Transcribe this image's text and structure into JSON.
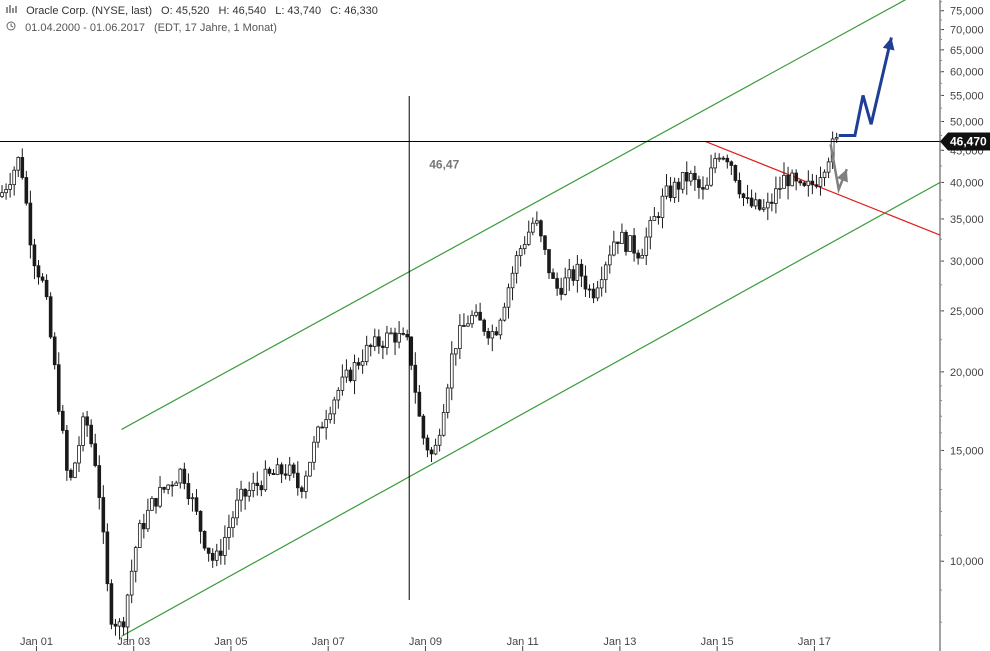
{
  "header": {
    "icon": "chart-type-icon",
    "instrument": "Oracle Corp. (NYSE, last)",
    "open": "O: 45,520",
    "high": "H: 46,540",
    "low": "L: 43,740",
    "close": "C: 46,330",
    "clock_icon": "clock-icon",
    "date_range": "01.04.2000 - 01.06.2017",
    "interval": "(EDT, 17 Jahre, 1 Monat)"
  },
  "chart_data": {
    "type": "candlestick",
    "scale": "log",
    "ylim": [
      7.2,
      78
    ],
    "xlim": [
      "2000-04",
      "2019-08"
    ],
    "x_ticks": [
      "Jan 01",
      "Jan 03",
      "Jan 05",
      "Jan 07",
      "Jan 09",
      "Jan 11",
      "Jan 13",
      "Jan 15",
      "Jan 17"
    ],
    "x_tick_dates": [
      "2001-01",
      "2003-01",
      "2005-01",
      "2007-01",
      "2009-01",
      "2011-01",
      "2013-01",
      "2015-01",
      "2017-01"
    ],
    "y_ticks": [
      {
        "value": 10000,
        "label": "10,000"
      },
      {
        "value": 15000,
        "label": "15,000"
      },
      {
        "value": 20000,
        "label": "20,000"
      },
      {
        "value": 25000,
        "label": "25,000"
      },
      {
        "value": 30000,
        "label": "30,000"
      },
      {
        "value": 35000,
        "label": "35,000"
      },
      {
        "value": 40000,
        "label": "40,000"
      },
      {
        "value": 45000,
        "label": "45,000"
      },
      {
        "value": 50000,
        "label": "50,000"
      },
      {
        "value": 55000,
        "label": "55,000"
      },
      {
        "value": 60000,
        "label": "60,000"
      },
      {
        "value": 65000,
        "label": "65,000"
      },
      {
        "value": 70000,
        "label": "70,000"
      },
      {
        "value": 75000,
        "label": "75,000"
      }
    ],
    "price_marker": {
      "value": 46470,
      "label": "46,470"
    },
    "horizontal_line": {
      "value": 46470
    },
    "crosshair": {
      "date": "2008-09",
      "value": 46470,
      "label": "46,47"
    },
    "anchors": [
      [
        "2000-04",
        38
      ],
      [
        "2000-09",
        44
      ],
      [
        "2000-12",
        31
      ],
      [
        "2001-03",
        27
      ],
      [
        "2001-06",
        19
      ],
      [
        "2001-09",
        13
      ],
      [
        "2002-01",
        17
      ],
      [
        "2002-04",
        14
      ],
      [
        "2002-07",
        8.3
      ],
      [
        "2002-10",
        7.8
      ],
      [
        "2003-02",
        11
      ],
      [
        "2003-06",
        12.5
      ],
      [
        "2004-01",
        14
      ],
      [
        "2004-06",
        11
      ],
      [
        "2004-09",
        9.9
      ],
      [
        "2005-03",
        12.5
      ],
      [
        "2005-09",
        13.5
      ],
      [
        "2006-03",
        14
      ],
      [
        "2006-06",
        13
      ],
      [
        "2006-12",
        17
      ],
      [
        "2007-03",
        18.5
      ],
      [
        "2007-10",
        21.5
      ],
      [
        "2008-05",
        23
      ],
      [
        "2008-09",
        22
      ],
      [
        "2008-12",
        16
      ],
      [
        "2009-03",
        14.5
      ],
      [
        "2009-08",
        22
      ],
      [
        "2009-12",
        24.5
      ],
      [
        "2010-06",
        23
      ],
      [
        "2010-12",
        31
      ],
      [
        "2011-04",
        35
      ],
      [
        "2011-09",
        27
      ],
      [
        "2012-03",
        29
      ],
      [
        "2012-06",
        26.5
      ],
      [
        "2012-12",
        33
      ],
      [
        "2013-06",
        31
      ],
      [
        "2013-12",
        38
      ],
      [
        "2014-06",
        41
      ],
      [
        "2014-10",
        38
      ],
      [
        "2015-01",
        45
      ],
      [
        "2015-04",
        44
      ],
      [
        "2015-08",
        37
      ],
      [
        "2016-01",
        36
      ],
      [
        "2016-06",
        41
      ],
      [
        "2016-10",
        38.5
      ],
      [
        "2017-01",
        40
      ],
      [
        "2017-06",
        46.3
      ]
    ],
    "trendlines": [
      {
        "name": "channel-upper",
        "color": "#3a9a3a",
        "from": [
          "2002-10",
          16.2
        ],
        "to": [
          "2019-04",
          81
        ]
      },
      {
        "name": "channel-lower",
        "color": "#3a9a3a",
        "from": [
          "2002-10",
          7.6
        ],
        "to": [
          "2019-08",
          40
        ]
      },
      {
        "name": "resistance",
        "color": "#e02020",
        "from": [
          "2014-10",
          46.5
        ],
        "to": [
          "2019-08",
          33
        ]
      }
    ],
    "projections": [
      {
        "name": "bullish-projection",
        "color": "#1f3f96",
        "points": [
          [
            "2017-07",
            47.5
          ],
          [
            "2017-11",
            47.5
          ],
          [
            "2018-01",
            55
          ],
          [
            "2018-03",
            49.5
          ],
          [
            "2018-08",
            68
          ]
        ]
      },
      {
        "name": "bearish-projection",
        "color": "#808080",
        "points": [
          [
            "2017-05",
            46
          ],
          [
            "2017-07",
            39
          ],
          [
            "2017-09",
            42
          ]
        ]
      }
    ],
    "colors": {
      "candle": "#1a1a1a",
      "axis": "#444444",
      "grid_line": "#000000"
    }
  }
}
